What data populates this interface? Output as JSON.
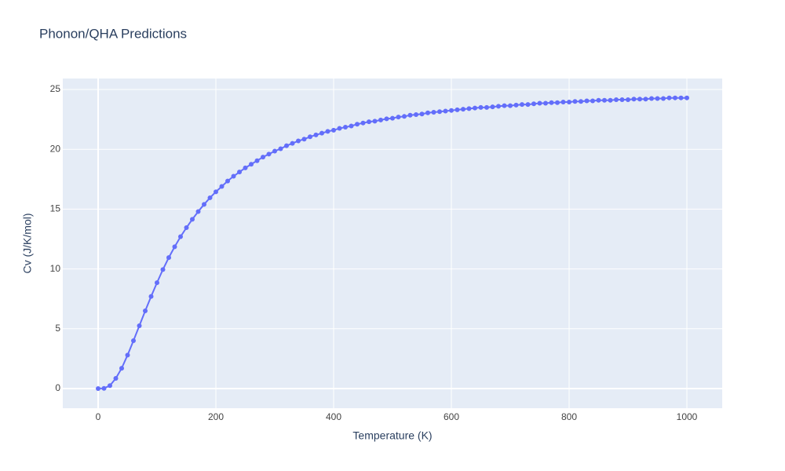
{
  "chart_data": {
    "type": "line",
    "title": "Phonon/QHA Predictions",
    "x_label": "Temperature (K)",
    "y_label": "Cv (J/K/mol)",
    "color": "#636efa",
    "markers": true,
    "grid": true,
    "xlim": [
      -60,
      1060
    ],
    "ylim": [
      -1.64,
      25.92
    ],
    "xticks": [
      0,
      200,
      400,
      600,
      800,
      1000
    ],
    "yticks": [
      0,
      5,
      10,
      15,
      20,
      25
    ],
    "x": [
      0,
      10,
      20,
      30,
      40,
      50,
      60,
      70,
      80,
      90,
      100,
      110,
      120,
      130,
      140,
      150,
      160,
      170,
      180,
      190,
      200,
      210,
      220,
      230,
      240,
      250,
      260,
      270,
      280,
      290,
      300,
      310,
      320,
      330,
      340,
      350,
      360,
      370,
      380,
      390,
      400,
      410,
      420,
      430,
      440,
      450,
      460,
      470,
      480,
      490,
      500,
      510,
      520,
      530,
      540,
      550,
      560,
      570,
      580,
      590,
      600,
      610,
      620,
      630,
      640,
      650,
      660,
      670,
      680,
      690,
      700,
      710,
      720,
      730,
      740,
      750,
      760,
      770,
      780,
      790,
      800,
      810,
      820,
      830,
      840,
      850,
      860,
      870,
      880,
      890,
      900,
      910,
      920,
      930,
      940,
      950,
      960,
      970,
      980,
      990,
      1000
    ],
    "values": [
      0,
      0.02,
      0.25,
      0.85,
      1.7,
      2.8,
      4.0,
      5.25,
      6.5,
      7.7,
      8.85,
      9.95,
      10.95,
      11.85,
      12.7,
      13.45,
      14.15,
      14.8,
      15.4,
      15.95,
      16.45,
      16.9,
      17.35,
      17.75,
      18.1,
      18.45,
      18.75,
      19.05,
      19.35,
      19.6,
      19.85,
      20.05,
      20.3,
      20.5,
      20.7,
      20.85,
      21.05,
      21.2,
      21.35,
      21.5,
      21.6,
      21.75,
      21.85,
      21.95,
      22.1,
      22.2,
      22.3,
      22.35,
      22.45,
      22.55,
      22.6,
      22.7,
      22.75,
      22.85,
      22.9,
      22.95,
      23.05,
      23.1,
      23.15,
      23.2,
      23.25,
      23.3,
      23.35,
      23.4,
      23.45,
      23.5,
      23.5,
      23.55,
      23.6,
      23.65,
      23.65,
      23.7,
      23.75,
      23.75,
      23.8,
      23.85,
      23.85,
      23.9,
      23.9,
      23.95,
      23.95,
      24.0,
      24.0,
      24.05,
      24.05,
      24.1,
      24.1,
      24.1,
      24.15,
      24.15,
      24.15,
      24.2,
      24.2,
      24.2,
      24.25,
      24.25,
      24.25,
      24.3,
      24.3,
      24.3,
      24.3
    ]
  }
}
